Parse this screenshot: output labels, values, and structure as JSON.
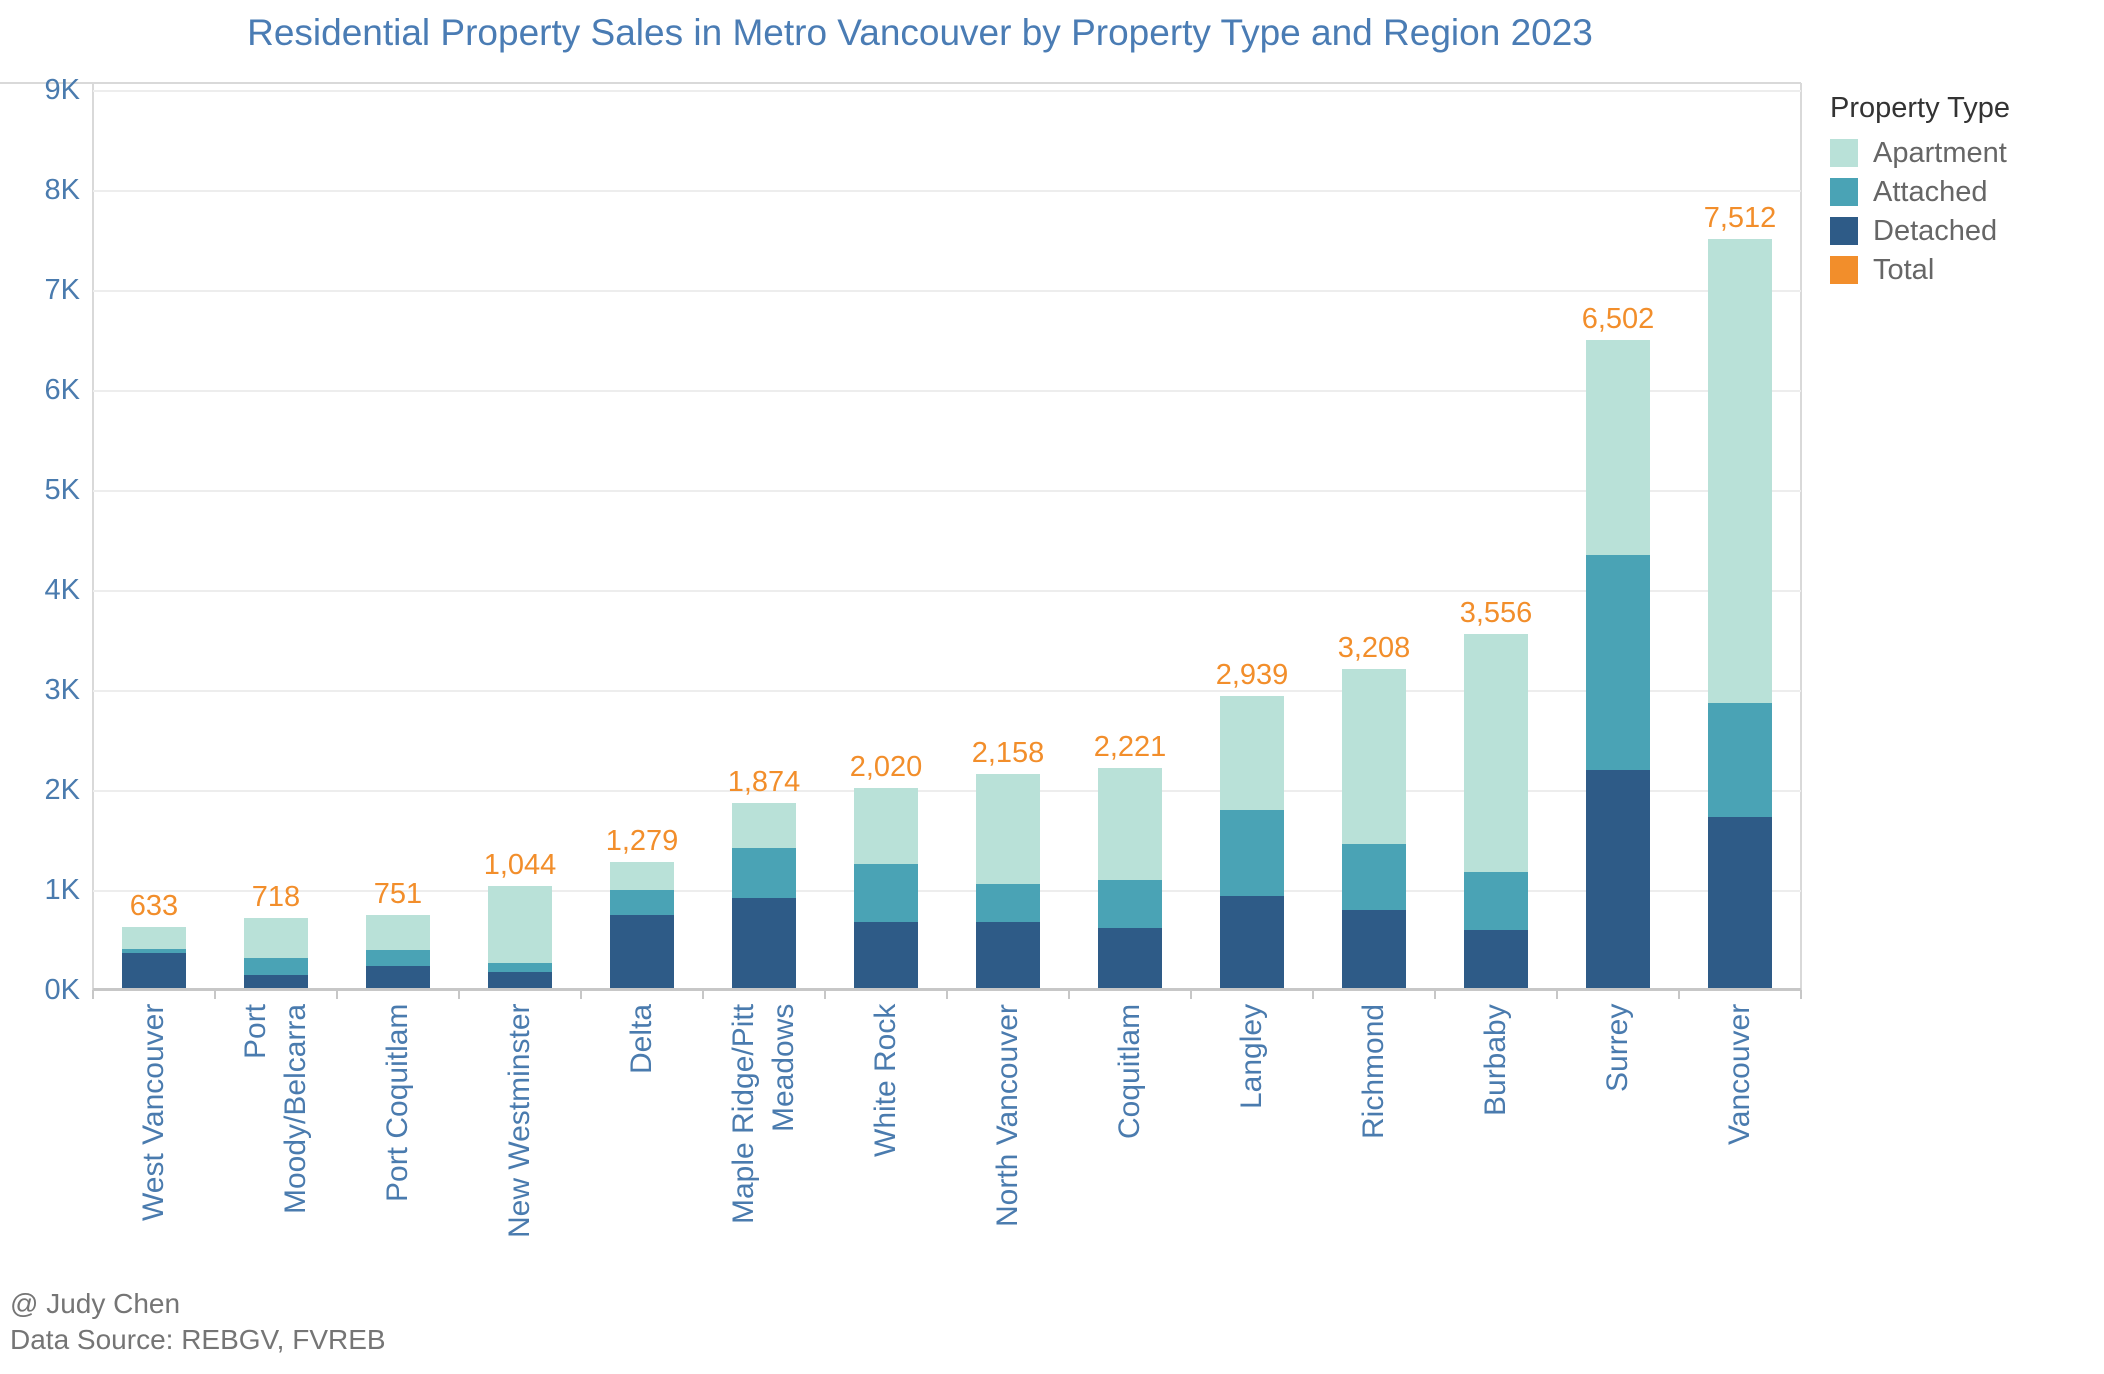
{
  "title": "Residential Property Sales in Metro Vancouver by Property Type and Region 2023",
  "footer": {
    "line1": "@ Judy Chen",
    "line2": "Data Source: REBGV, FVREB"
  },
  "legend": {
    "title": "Property Type",
    "items": [
      {
        "label": "Apartment",
        "color_key": "apartment"
      },
      {
        "label": "Attached",
        "color_key": "attached"
      },
      {
        "label": "Detached",
        "color_key": "detached"
      },
      {
        "label": "Total",
        "color_key": "total"
      }
    ]
  },
  "y_axis": {
    "ticks": [
      "0K",
      "1K",
      "2K",
      "3K",
      "4K",
      "5K",
      "6K",
      "7K",
      "8K",
      "9K"
    ]
  },
  "colors": {
    "apartment": "#b9e1d8",
    "attached": "#4aa3b5",
    "detached": "#2e5b87",
    "total": "#f28e2b",
    "title_text": "#4a7cb4",
    "axis_text": "#4a7bae",
    "gridline": "#ededed",
    "plot_border": "#d9d9d9",
    "axis_line": "#c7c7c7",
    "footer_text": "#757575",
    "legend_title_text": "#333333",
    "legend_label_text": "#666666"
  },
  "chart_data": {
    "type": "bar",
    "stacked": true,
    "title": "Residential Property Sales in Metro Vancouver by Property Type and Region 2023",
    "xlabel": "",
    "ylabel": "",
    "ylim": [
      0,
      9000
    ],
    "grid": true,
    "legend_position": "top-right",
    "categories": [
      "West Vancouver",
      "Port Moody/Belcarra",
      "Port Coquitlam",
      "New Westminster",
      "Delta",
      "Maple Ridge/Pitt Meadows",
      "White Rock",
      "North Vancouver",
      "Coquitlam",
      "Langley",
      "Richmond",
      "Burbaby",
      "Surrey",
      "Vancouver"
    ],
    "category_label_lines": [
      [
        "West Vancouver"
      ],
      [
        "Port",
        "Moody/Belcarra"
      ],
      [
        "Port Coquitlam"
      ],
      [
        "New Westminster"
      ],
      [
        "Delta"
      ],
      [
        "Maple Ridge/Pitt",
        "Meadows"
      ],
      [
        "White Rock"
      ],
      [
        "North Vancouver"
      ],
      [
        "Coquitlam"
      ],
      [
        "Langley"
      ],
      [
        "Richmond"
      ],
      [
        "Burbaby"
      ],
      [
        "Surrey"
      ],
      [
        "Vancouver"
      ]
    ],
    "series": [
      {
        "name": "Detached",
        "values": [
          370,
          150,
          240,
          180,
          750,
          920,
          680,
          680,
          620,
          940,
          800,
          600,
          2200,
          1730
        ]
      },
      {
        "name": "Attached",
        "values": [
          40,
          170,
          160,
          90,
          250,
          500,
          580,
          380,
          480,
          860,
          660,
          580,
          2150,
          1140
        ]
      },
      {
        "name": "Apartment",
        "values": [
          223,
          398,
          351,
          774,
          279,
          454,
          760,
          1098,
          1121,
          1139,
          1748,
          2376,
          2152,
          4642
        ]
      }
    ],
    "totals": [
      633,
      718,
      751,
      1044,
      1279,
      1874,
      2020,
      2158,
      2221,
      2939,
      3208,
      3556,
      6502,
      7512
    ],
    "total_labels": [
      "633",
      "718",
      "751",
      "1,044",
      "1,279",
      "1,874",
      "2,020",
      "2,158",
      "2,221",
      "2,939",
      "3,208",
      "3,556",
      "6,502",
      "7,512"
    ]
  }
}
